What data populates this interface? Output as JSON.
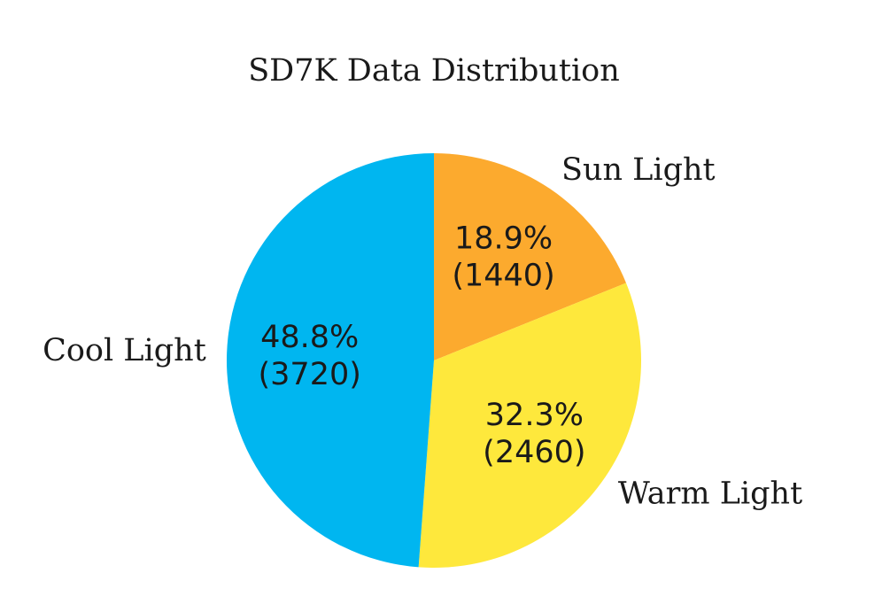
{
  "chart_data": {
    "type": "pie",
    "title": "SD7K Data Distribution",
    "start_angle_deg": 90,
    "direction": "clockwise",
    "slices": [
      {
        "label": "Sun Light",
        "value": 1440,
        "percent_label": "18.9%",
        "count_label": "(1440)",
        "color": "#FCAA2E"
      },
      {
        "label": "Warm Light",
        "value": 2460,
        "percent_label": "32.3%",
        "count_label": "(2460)",
        "color": "#FEE83C"
      },
      {
        "label": "Cool Light",
        "value": 3720,
        "percent_label": "48.8%",
        "count_label": "(3720)",
        "color": "#00B6F0"
      }
    ]
  }
}
